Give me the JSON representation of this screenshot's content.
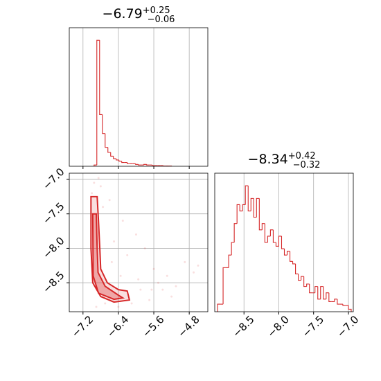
{
  "chart_data": [
    {
      "type": "histogram",
      "title": {
        "value": "−6.79",
        "upper": "+0.25",
        "lower": "−0.06"
      },
      "bins": [
        -6.95,
        -6.8875,
        -6.825,
        -6.7625,
        -6.7,
        -6.6375,
        -6.575,
        -6.5125,
        -6.45,
        -6.3875,
        -6.325,
        -6.2625,
        -6.2,
        -6.1375,
        -6.075,
        -6.0125,
        -5.95,
        -5.8875,
        -5.825,
        -5.7625,
        -5.7,
        -5.6375,
        -5.575,
        -5.5125,
        -5.45,
        -5.3875,
        -5.325,
        -5.2625,
        -5.2
      ],
      "counts": [
        1,
        100,
        41,
        26,
        15,
        11,
        8,
        6,
        5,
        4,
        3,
        3,
        2,
        2,
        2,
        1.5,
        1,
        1,
        1.5,
        1,
        1,
        0.5,
        0.5,
        0.5,
        0.5,
        0.2,
        0.2,
        0.2
      ],
      "color": "#d62728",
      "xlim": [
        -7.51,
        -4.38
      ],
      "xticks": [
        -7.2,
        -6.4,
        -5.6,
        -4.8
      ],
      "ylim": [
        0,
        110
      ],
      "grid": true
    },
    {
      "type": "scatter",
      "x": [
        -7.0,
        -6.95,
        -6.6,
        -6.3,
        -6.0,
        -5.8,
        -5.6,
        -5.5,
        -5.3,
        -5.2,
        -4.9,
        -4.7,
        -4.6,
        -6.5,
        -6.2,
        -5.9,
        -6.7,
        -6.4,
        -6.1,
        -5.7,
        -5.4,
        -6.85,
        -6.8,
        -6.75,
        -6.55,
        -6.35,
        -5.95,
        -5.65,
        -5.1,
        -6.9
      ],
      "y": [
        -7.2,
        -7.05,
        -7.3,
        -7.6,
        -7.8,
        -8.0,
        -8.3,
        -8.5,
        -8.4,
        -8.7,
        -8.2,
        -8.35,
        -8.25,
        -7.9,
        -8.1,
        -8.6,
        -8.8,
        -8.85,
        -8.8,
        -8.75,
        -8.6,
        -6.98,
        -7.1,
        -7.4,
        -8.2,
        -8.4,
        -8.45,
        -8.6,
        -8.55,
        -8.85
      ],
      "contours": [
        {
          "x": [
            -7.02,
            -6.88,
            -6.85,
            -6.82,
            -6.8,
            -6.65,
            -6.4,
            -6.2,
            -6.15,
            -6.5,
            -6.8,
            -6.98,
            -7.02,
            -7.02
          ],
          "y": [
            -7.25,
            -7.25,
            -7.6,
            -8.0,
            -8.3,
            -8.5,
            -8.6,
            -8.62,
            -8.75,
            -8.78,
            -8.7,
            -8.5,
            -8.0,
            -7.6
          ]
        },
        {
          "x": [
            -6.98,
            -6.9,
            -6.88,
            -6.86,
            -6.7,
            -6.4,
            -6.3,
            -6.5,
            -6.85,
            -6.97
          ],
          "y": [
            -7.5,
            -7.5,
            -8.0,
            -8.35,
            -8.55,
            -8.68,
            -8.72,
            -8.74,
            -8.65,
            -8.4
          ]
        }
      ],
      "color": "#d62728",
      "xlim": [
        -7.51,
        -4.38
      ],
      "xticks": [
        {
          "value": -7.2,
          "label": "−7.2"
        },
        {
          "value": -6.4,
          "label": "−6.4"
        },
        {
          "value": -5.6,
          "label": "−5.6"
        },
        {
          "value": -4.8,
          "label": "−4.8"
        }
      ],
      "ylim": [
        -8.92,
        -6.91
      ],
      "yticks": [
        {
          "value": -7.0,
          "label": "−7.0"
        },
        {
          "value": -7.5,
          "label": "−7.5"
        },
        {
          "value": -8.0,
          "label": "−8.0"
        },
        {
          "value": -8.5,
          "label": "−8.5"
        }
      ],
      "grid": true
    },
    {
      "type": "histogram",
      "title": {
        "value": "−8.34",
        "upper": "+0.42",
        "lower": "−0.32"
      },
      "bins": [
        -8.88,
        -8.84,
        -8.8,
        -8.76,
        -8.72,
        -8.68,
        -8.64,
        -8.6,
        -8.56,
        -8.52,
        -8.48,
        -8.44,
        -8.4,
        -8.36,
        -8.32,
        -8.28,
        -8.24,
        -8.2,
        -8.16,
        -8.12,
        -8.08,
        -8.04,
        -8.0,
        -7.96,
        -7.92,
        -7.88,
        -7.84,
        -7.8,
        -7.76,
        -7.72,
        -7.68,
        -7.64,
        -7.6,
        -7.56,
        -7.52,
        -7.48,
        -7.44,
        -7.4,
        -7.36,
        -7.32,
        -7.28,
        -7.24,
        -7.2,
        -7.16,
        -7.12,
        -7.08,
        -7.04,
        -7.0,
        -6.96
      ],
      "counts": [
        6,
        6,
        35,
        35,
        45,
        55,
        70,
        85,
        80,
        85,
        100,
        80,
        90,
        75,
        90,
        65,
        70,
        55,
        60,
        65,
        55,
        52,
        60,
        50,
        45,
        48,
        40,
        38,
        30,
        25,
        28,
        20,
        22,
        15,
        15,
        20,
        10,
        20,
        10,
        15,
        8,
        8,
        10,
        6,
        6,
        5,
        5,
        2
      ],
      "color": "#d62728",
      "xlim": [
        -8.92,
        -6.93
      ],
      "xticks": [
        {
          "value": -8.5,
          "label": "−8.5"
        },
        {
          "value": -8.0,
          "label": "−8.0"
        },
        {
          "value": -7.5,
          "label": "−7.5"
        },
        {
          "value": -7.0,
          "label": "−7.0"
        }
      ],
      "ylim": [
        0,
        110
      ],
      "grid": true
    }
  ]
}
